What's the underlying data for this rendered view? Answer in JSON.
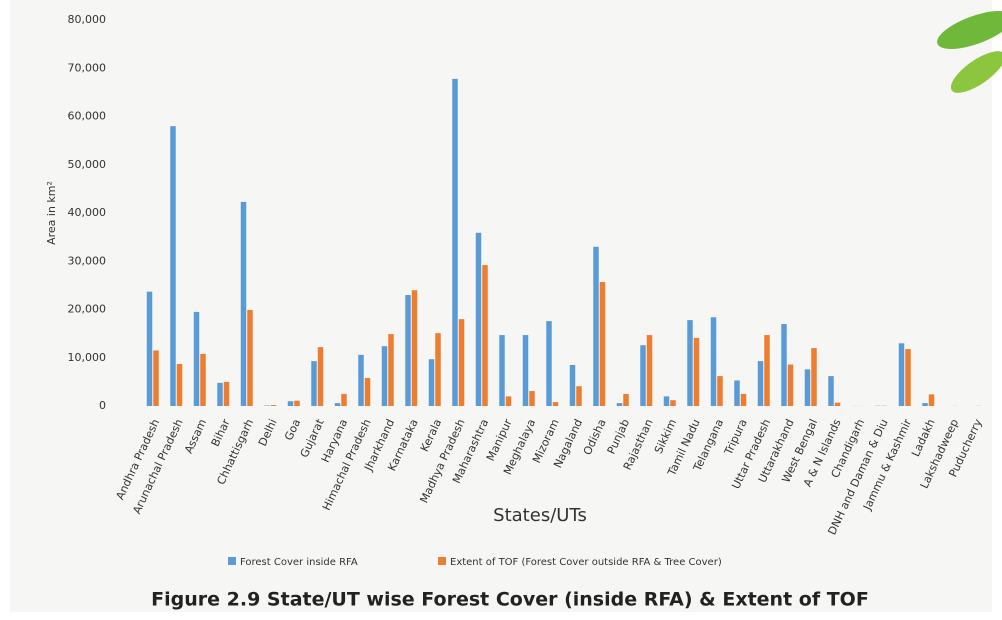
{
  "chart_data": {
    "type": "bar",
    "title": "Figure 2.9 State/UT wise Forest Cover (inside RFA) & Extent of TOF",
    "x_label": "States/UTs",
    "y_label": "Area in km²",
    "categories": [
      "Andhra Pradesh",
      "Arunachal Pradesh",
      "Assam",
      "Bihar",
      "Chhattisgarh",
      "Delhi",
      "Goa",
      "Gujarat",
      "Haryana",
      "Himachal Pradesh",
      "Jharkhand",
      "Karnataka",
      "Kerala",
      "Madhya Pradesh",
      "Maharashtra",
      "Manipur",
      "Meghalaya",
      "Mizoram",
      "Nagaland",
      "Odisha",
      "Punjab",
      "Rajasthan",
      "Sikkim",
      "Tamil Nadu",
      "Telangana",
      "Tripura",
      "Uttar Pradesh",
      "Uttarakhand",
      "West Bengal",
      "A & N Islands",
      "Chandigarh",
      "DNH and Daman & Diu",
      "Jammu & Kashmir",
      "Ladakh",
      "Lakshadweep",
      "Puducherry"
    ],
    "series": [
      {
        "name": "Forest Cover inside RFA",
        "color": "#5b9bd5",
        "values": [
          23700,
          58000,
          19500,
          4800,
          42300,
          100,
          1000,
          9300,
          600,
          10600,
          12400,
          23000,
          9700,
          67800,
          35900,
          14700,
          14700,
          17600,
          8500,
          33000,
          600,
          12600,
          2000,
          17800,
          18400,
          5300,
          9300,
          17000,
          7600,
          6200,
          20,
          50,
          13000,
          600,
          0,
          0
        ]
      },
      {
        "name": "Extent of TOF (Forest Cover outside RFA & Tree Cover)",
        "color": "#ed7d31",
        "values": [
          11500,
          8700,
          10800,
          5000,
          19900,
          200,
          1100,
          12200,
          2500,
          5800,
          14900,
          24000,
          15100,
          18000,
          29200,
          2000,
          3100,
          800,
          4100,
          25700,
          2500,
          14700,
          1200,
          14100,
          6200,
          2500,
          14700,
          8600,
          12000,
          700,
          10,
          50,
          11800,
          2400,
          20,
          30
        ]
      }
    ],
    "ylim": [
      0,
      80000
    ],
    "yticks": [
      0,
      {
        "value": 10000,
        "label": "10,000"
      },
      {
        "value": 20000,
        "label": "20,000"
      },
      {
        "value": 30000,
        "label": "30,000"
      },
      {
        "value": 40000,
        "label": "40,000"
      },
      {
        "value": 50000,
        "label": "50,000"
      },
      {
        "value": 60000,
        "label": "60,000"
      },
      {
        "value": 70000,
        "label": "70,000"
      },
      {
        "value": 80000,
        "label": "80,000"
      }
    ],
    "grid": false,
    "legend": "bottom"
  }
}
